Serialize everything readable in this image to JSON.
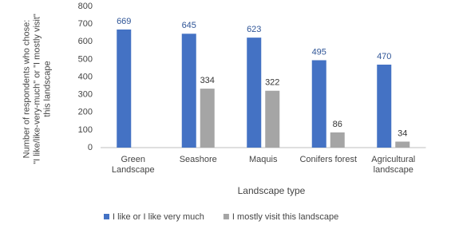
{
  "chart_data": {
    "type": "bar",
    "categories": [
      "Green\nLandscape",
      "Seashore",
      "Maquis",
      "Conifers forest",
      "Agricultural\nlandscape"
    ],
    "series": [
      {
        "name": "I like or I like very much",
        "color": "#4472c4",
        "label_color": "#2f5597",
        "values": [
          669,
          645,
          623,
          495,
          470
        ]
      },
      {
        "name": "I mostly visit this landscape",
        "color": "#a5a5a5",
        "label_color": "#333333",
        "values": [
          null,
          334,
          322,
          86,
          34
        ]
      }
    ],
    "x_label": "Landscape type",
    "y_label": "Number of respondents who chose:\n\"I like/like-very-much\" or \"I mostly visit\"\nthis landscape",
    "ylim": [
      0,
      800
    ],
    "yticks": [
      0,
      100,
      200,
      300,
      400,
      500,
      600,
      700,
      800
    ],
    "grid": false,
    "legend": "bottom"
  }
}
